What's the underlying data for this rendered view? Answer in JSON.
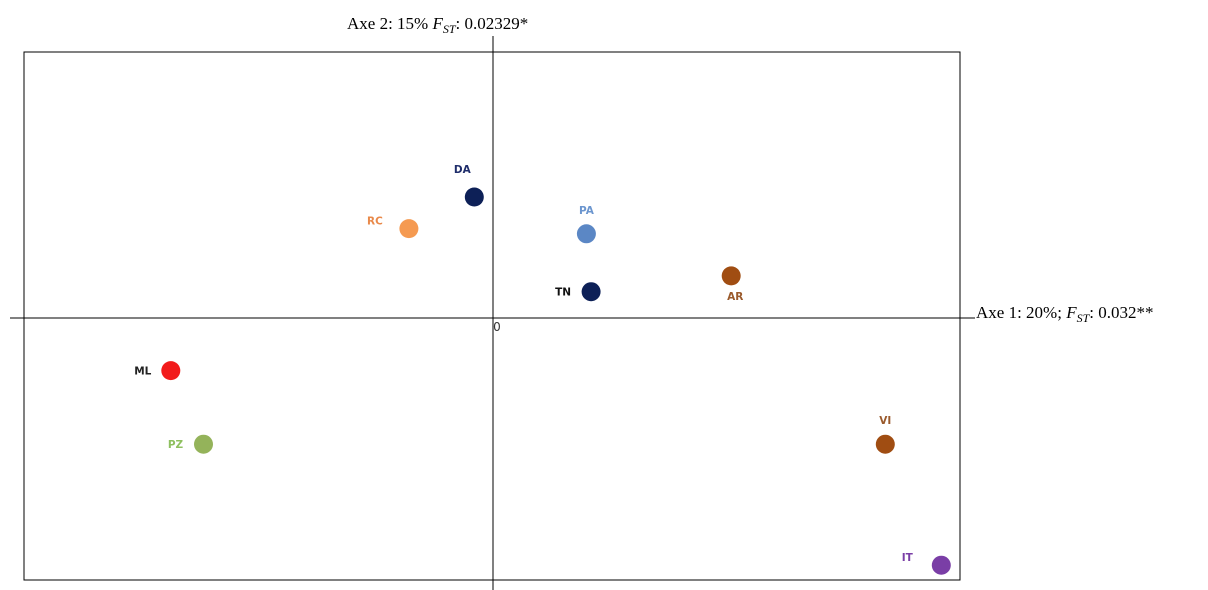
{
  "chart_data": {
    "type": "scatter",
    "x_axis": {
      "label_prefix": "Axe 1: 20%; ",
      "label_stat": "F",
      "label_sub": "ST",
      "label_suffix": ": 0.032**"
    },
    "y_axis": {
      "label_prefix": "Axe 2: 15% ",
      "label_stat": "F",
      "label_sub": "ST",
      "label_suffix": ": 0.02329*"
    },
    "origin_label": "0",
    "xlim": [
      -1.0,
      1.0
    ],
    "ylim": [
      -1.0,
      1.0
    ],
    "grid": false,
    "points": [
      {
        "label": "DA",
        "x": -0.04,
        "y": 0.46,
        "color": "#0d2057",
        "label_color": "#1f2d6b",
        "label_pos": "above-left"
      },
      {
        "label": "RC",
        "x": -0.18,
        "y": 0.34,
        "color": "#f59a51",
        "label_color": "#e9894a",
        "label_pos": "left-up"
      },
      {
        "label": "PA",
        "x": 0.2,
        "y": 0.32,
        "color": "#5b87c5",
        "label_color": "#6c96cf",
        "label_pos": "above"
      },
      {
        "label": "TN",
        "x": 0.21,
        "y": 0.1,
        "color": "#0d2057",
        "label_color": "#111111",
        "label_pos": "left"
      },
      {
        "label": "AR",
        "x": 0.51,
        "y": 0.16,
        "color": "#a04d12",
        "label_color": "#9a5a2c",
        "label_pos": "below"
      },
      {
        "label": "ML",
        "x": -0.69,
        "y": -0.2,
        "color": "#f21b1b",
        "label_color": "#222222",
        "label_pos": "left"
      },
      {
        "label": "PZ",
        "x": -0.62,
        "y": -0.48,
        "color": "#94b35a",
        "label_color": "#8fc060",
        "label_pos": "left"
      },
      {
        "label": "VI",
        "x": 0.84,
        "y": -0.48,
        "color": "#a04d12",
        "label_color": "#9a5a2c",
        "label_pos": "above"
      },
      {
        "label": "IT",
        "x": 0.96,
        "y": -0.94,
        "color": "#7a3ea6",
        "label_color": "#7a3ea6",
        "label_pos": "left-up"
      }
    ]
  }
}
